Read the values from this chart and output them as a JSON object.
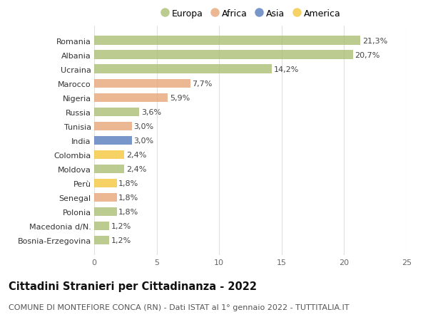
{
  "countries": [
    "Bosnia-Erzegovina",
    "Macedonia d/N.",
    "Polonia",
    "Senegal",
    "Perù",
    "Moldova",
    "Colombia",
    "India",
    "Tunisia",
    "Russia",
    "Nigeria",
    "Marocco",
    "Ucraina",
    "Albania",
    "Romania"
  ],
  "values": [
    1.2,
    1.2,
    1.8,
    1.8,
    1.8,
    2.4,
    2.4,
    3.0,
    3.0,
    3.6,
    5.9,
    7.7,
    14.2,
    20.7,
    21.3
  ],
  "continents": [
    "Europa",
    "Europa",
    "Europa",
    "Africa",
    "America",
    "Europa",
    "America",
    "Asia",
    "Africa",
    "Europa",
    "Africa",
    "Africa",
    "Europa",
    "Europa",
    "Europa"
  ],
  "continent_colors": {
    "Europa": "#adc178",
    "Africa": "#e8a87c",
    "Asia": "#5b7fbf",
    "America": "#f5c842"
  },
  "legend_order": [
    "Europa",
    "Africa",
    "Asia",
    "America"
  ],
  "title": "Cittadini Stranieri per Cittadinanza - 2022",
  "subtitle": "COMUNE DI MONTEFIORE CONCA (RN) - Dati ISTAT al 1° gennaio 2022 - TUTTITALIA.IT",
  "xlim": [
    0,
    25
  ],
  "xticks": [
    0,
    5,
    10,
    15,
    20,
    25
  ],
  "background_color": "#ffffff",
  "grid_color": "#e0e0e0",
  "bar_height": 0.62,
  "title_fontsize": 10.5,
  "subtitle_fontsize": 8.0,
  "label_fontsize": 8.0,
  "tick_fontsize": 8.0,
  "legend_fontsize": 9.0,
  "bar_alpha": 0.82
}
